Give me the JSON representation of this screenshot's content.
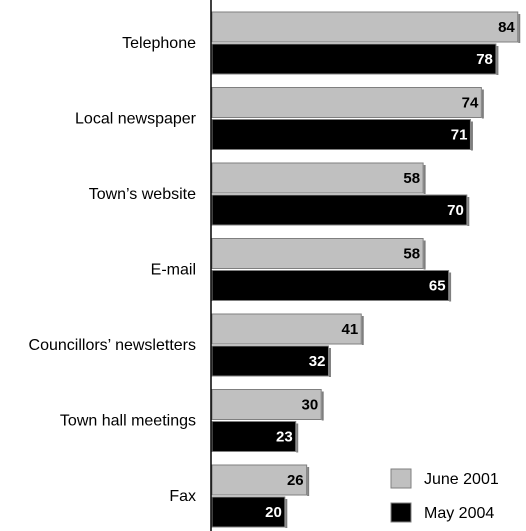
{
  "chart_data": {
    "type": "bar",
    "orientation": "horizontal",
    "categories": [
      "Telephone",
      "Local newspaper",
      "Town’s website",
      "E-mail",
      "Councillors’ newsletters",
      "Town hall meetings",
      "Fax"
    ],
    "series": [
      {
        "name": "June 2001",
        "values": [
          84,
          74,
          58,
          58,
          41,
          30,
          26
        ],
        "color": "#c0c0c0",
        "label_color": "#000000"
      },
      {
        "name": "May 2004",
        "values": [
          78,
          71,
          70,
          65,
          32,
          23,
          20
        ],
        "color": "#000000",
        "label_color": "#ffffff"
      }
    ],
    "title": "",
    "xlabel": "",
    "ylabel": "",
    "xlim": [
      0,
      86
    ],
    "grid": false,
    "legend_position": "bottom-right",
    "data_labels": true
  }
}
